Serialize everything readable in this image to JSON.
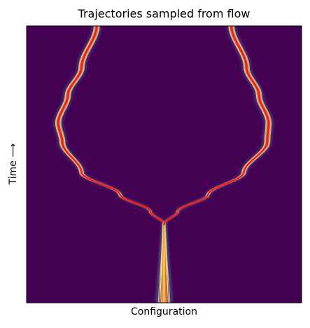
{
  "chart_data": {
    "type": "line",
    "title": "Trajectories sampled from flow",
    "xlabel": "Configuration",
    "ylabel": "Time ⟶",
    "axis_ticks": false,
    "grid": false,
    "background_color": "#440154",
    "colormap": "spectral (violet → teal → green → yellow → orange → red)",
    "description_units": "x: configuration (normalized 0–1), t: time (normalized 0 = bottom, 1 = top)",
    "branches": [
      {
        "name": "",
        "points": [
          {
            "t": 0.0,
            "x": 0.497
          },
          {
            "t": 0.2,
            "x": 0.5
          },
          {
            "t": 0.285,
            "x": 0.5
          },
          {
            "t": 0.33,
            "x": 0.45
          },
          {
            "t": 0.39,
            "x": 0.34
          },
          {
            "t": 0.47,
            "x": 0.2
          },
          {
            "t": 0.58,
            "x": 0.13
          },
          {
            "t": 0.65,
            "x": 0.115
          },
          {
            "t": 0.75,
            "x": 0.15
          },
          {
            "t": 0.85,
            "x": 0.2
          },
          {
            "t": 1.0,
            "x": 0.255
          }
        ]
      },
      {
        "name": "",
        "points": [
          {
            "t": 0.0,
            "x": 0.503
          },
          {
            "t": 0.2,
            "x": 0.5
          },
          {
            "t": 0.285,
            "x": 0.5
          },
          {
            "t": 0.33,
            "x": 0.55
          },
          {
            "t": 0.39,
            "x": 0.66
          },
          {
            "t": 0.47,
            "x": 0.79
          },
          {
            "t": 0.58,
            "x": 0.875
          },
          {
            "t": 0.65,
            "x": 0.88
          },
          {
            "t": 0.75,
            "x": 0.845
          },
          {
            "t": 0.85,
            "x": 0.8
          },
          {
            "t": 1.0,
            "x": 0.745
          }
        ]
      }
    ]
  }
}
